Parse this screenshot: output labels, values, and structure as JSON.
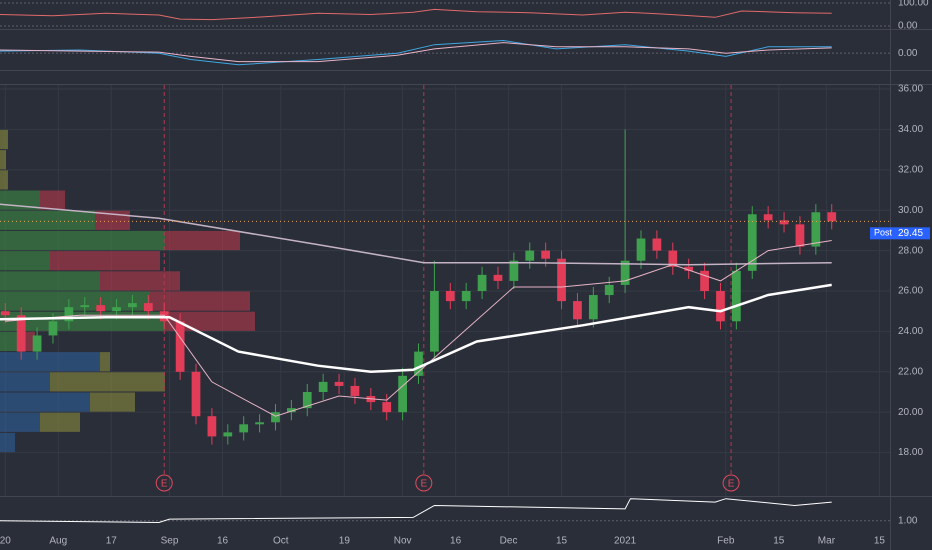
{
  "chart_data": [
    {
      "type": "candlestick",
      "xlim": [
        0,
        168
      ],
      "ylim": [
        15.85,
        36.2
      ],
      "xticks": [
        {
          "value": 1,
          "label": "20"
        },
        {
          "value": 11,
          "label": "Aug"
        },
        {
          "value": 21,
          "label": "17"
        },
        {
          "value": 32,
          "label": "Sep"
        },
        {
          "value": 42,
          "label": "16"
        },
        {
          "value": 53,
          "label": "Oct"
        },
        {
          "value": 65,
          "label": "19"
        },
        {
          "value": 76,
          "label": "Nov"
        },
        {
          "value": 86,
          "label": "16"
        },
        {
          "value": 96,
          "label": "Dec"
        },
        {
          "value": 106,
          "label": "15"
        },
        {
          "value": 118,
          "label": "2021"
        },
        {
          "value": 137,
          "label": "Feb"
        },
        {
          "value": 147,
          "label": "15"
        },
        {
          "value": 156,
          "label": "Mar"
        },
        {
          "value": 166,
          "label": "15"
        }
      ],
      "yticks": [
        {
          "value": 18,
          "label": "18.00"
        },
        {
          "value": 20,
          "label": "20.00"
        },
        {
          "value": 22,
          "label": "22.00"
        },
        {
          "value": 24,
          "label": "24.00"
        },
        {
          "value": 26,
          "label": "26.00"
        },
        {
          "value": 28,
          "label": "28.00"
        },
        {
          "value": 30,
          "label": "30.00"
        },
        {
          "value": 32,
          "label": "32.00"
        },
        {
          "value": 34,
          "label": "34.00"
        },
        {
          "value": 36,
          "label": "36.00"
        }
      ],
      "grid": true,
      "up_color": "#3fa14e",
      "down_color": "#e23d58",
      "x": [
        1,
        4,
        7,
        10,
        13,
        16,
        19,
        22,
        25,
        28,
        31,
        34,
        37,
        40,
        43,
        46,
        49,
        52,
        55,
        58,
        61,
        64,
        67,
        70,
        73,
        76,
        79,
        82,
        85,
        88,
        91,
        94,
        97,
        100,
        103,
        106,
        109,
        112,
        115,
        118,
        121,
        124,
        127,
        130,
        133,
        136,
        139,
        142,
        145,
        148,
        151,
        154,
        157
      ],
      "open": [
        25.0,
        24.8,
        23.0,
        23.8,
        24.5,
        25.2,
        25.3,
        25.0,
        25.2,
        25.4,
        25.0,
        24.5,
        22.0,
        19.8,
        18.8,
        19.0,
        19.4,
        19.5,
        20.0,
        20.2,
        21.0,
        21.5,
        21.3,
        20.8,
        20.5,
        20.0,
        21.8,
        23.0,
        26.0,
        25.5,
        26.0,
        26.8,
        26.5,
        27.5,
        28.0,
        27.6,
        25.5,
        24.6,
        25.8,
        26.3,
        27.5,
        28.6,
        28.0,
        27.2,
        27.0,
        26.0,
        24.5,
        27.0,
        29.8,
        29.5,
        29.3,
        28.2,
        29.9
      ],
      "high": [
        25.4,
        25.2,
        24.2,
        24.9,
        25.6,
        25.7,
        25.7,
        25.6,
        25.8,
        25.8,
        25.4,
        24.9,
        22.4,
        20.2,
        19.4,
        19.8,
        19.9,
        20.4,
        20.6,
        21.4,
        21.9,
        21.9,
        21.7,
        21.2,
        20.9,
        22.2,
        23.4,
        27.5,
        26.4,
        26.4,
        27.2,
        27.2,
        27.9,
        28.4,
        28.4,
        28.0,
        25.9,
        26.2,
        26.7,
        34.0,
        29.0,
        29.0,
        28.4,
        27.6,
        27.4,
        26.4,
        27.4,
        30.2,
        30.2,
        29.9,
        29.7,
        30.3,
        30.3
      ],
      "low": [
        24.4,
        22.6,
        22.6,
        23.4,
        24.1,
        24.8,
        24.6,
        24.6,
        24.8,
        24.6,
        24.1,
        21.6,
        19.4,
        18.4,
        18.4,
        18.6,
        19.0,
        19.1,
        19.6,
        19.8,
        20.6,
        20.9,
        20.4,
        20.1,
        19.6,
        19.6,
        21.4,
        22.6,
        25.1,
        25.1,
        25.6,
        26.1,
        26.1,
        27.1,
        27.2,
        25.1,
        24.2,
        24.2,
        25.4,
        25.9,
        27.1,
        27.6,
        26.8,
        26.6,
        25.6,
        24.1,
        24.1,
        26.6,
        29.1,
        28.9,
        27.8,
        27.8,
        29.05
      ],
      "close": [
        24.8,
        23.0,
        23.8,
        24.5,
        25.2,
        25.3,
        25.0,
        25.2,
        25.4,
        25.0,
        24.5,
        22.0,
        19.8,
        18.8,
        19.0,
        19.4,
        19.5,
        20.0,
        20.2,
        21.0,
        21.5,
        21.3,
        20.8,
        20.5,
        20.0,
        21.8,
        23.0,
        26.0,
        25.5,
        26.0,
        26.8,
        26.5,
        27.5,
        28.0,
        27.6,
        25.5,
        24.6,
        25.8,
        26.3,
        27.5,
        28.6,
        28.0,
        27.2,
        27.0,
        26.0,
        24.5,
        27.0,
        29.8,
        29.5,
        29.3,
        28.2,
        29.9,
        29.45
      ],
      "lines": [
        {
          "color": "#c4b3c4",
          "width": 1.5,
          "x": [
            0,
            30,
            60,
            80,
            100,
            130,
            157
          ],
          "values": [
            30.3,
            29.6,
            28.3,
            27.4,
            27.4,
            27.3,
            27.4
          ]
        },
        {
          "color": "#e7b3c6",
          "width": 1,
          "x": [
            1,
            15,
            31,
            40,
            52,
            64,
            73,
            82,
            97,
            106,
            118,
            127,
            136,
            145,
            157
          ],
          "values": [
            24.5,
            24.8,
            24.8,
            21.5,
            19.8,
            20.8,
            20.6,
            22.7,
            26.2,
            26.2,
            26.5,
            27.3,
            26.5,
            28.0,
            28.5
          ]
        },
        {
          "color": "#ffffff",
          "width": 2.5,
          "x": [
            0,
            20,
            32,
            45,
            60,
            70,
            78,
            90,
            110,
            130,
            136,
            145,
            157
          ],
          "values": [
            24.6,
            24.7,
            24.7,
            23.0,
            22.3,
            22.0,
            22.1,
            23.5,
            24.3,
            25.2,
            25.0,
            25.8,
            26.3
          ]
        }
      ],
      "profile": {
        "xlim": [
          0,
          400
        ],
        "groups": [
          {
            "up_color": "#8a8a3c",
            "down_color": "#8a8a3c",
            "prices": [
              33.5,
              32.5,
              31.5
            ],
            "up": [
              8,
              6,
              8
            ],
            "down": [
              0,
              0,
              0
            ]
          },
          {
            "up_color": "#3c8a45",
            "down_color": "#b8394b",
            "prices": [
              30.5,
              29.5,
              28.5,
              27.5,
              26.5,
              25.5,
              24.5,
              23.5
            ],
            "up": [
              40,
              95,
              165,
              50,
              100,
              150,
              165,
              20
            ],
            "down": [
              25,
              35,
              75,
              110,
              80,
              100,
              90,
              15
            ]
          },
          {
            "up_color": "#2f5f9a",
            "down_color": "#8a8a3c",
            "prices": [
              22.5,
              21.5,
              20.5,
              19.5,
              18.5
            ],
            "up": [
              100,
              50,
              90,
              40,
              15
            ],
            "down": [
              10,
              115,
              45,
              40,
              0
            ]
          }
        ]
      },
      "events": [
        {
          "x": 31,
          "label": "E"
        },
        {
          "x": 80,
          "label": "E"
        },
        {
          "x": 138,
          "label": "E"
        }
      ],
      "last": {
        "label": "Post",
        "value": 29.45
      }
    },
    {
      "type": "line",
      "xlim": [
        0,
        168
      ],
      "ylim": [
        0,
        100
      ],
      "yticks": [
        {
          "value": 100,
          "label": "100.00"
        },
        {
          "value": 0,
          "label": "0.00"
        }
      ],
      "series": [
        {
          "color": "#e26a6a",
          "x": [
            0,
            10,
            20,
            30,
            34,
            40,
            50,
            60,
            70,
            78,
            82,
            90,
            100,
            110,
            118,
            125,
            135,
            140,
            150,
            157
          ],
          "values": [
            50,
            45,
            55,
            48,
            30,
            28,
            40,
            55,
            50,
            60,
            72,
            62,
            58,
            48,
            60,
            52,
            38,
            65,
            58,
            55
          ]
        }
      ]
    },
    {
      "type": "line",
      "xlim": [
        0,
        168
      ],
      "ylim": [
        -1.4,
        2.0
      ],
      "yticks": [
        {
          "value": 0,
          "label": "0.00"
        }
      ],
      "series": [
        {
          "color": "#3fa6e0",
          "x": [
            0,
            15,
            30,
            36,
            45,
            60,
            75,
            82,
            95,
            105,
            118,
            130,
            137,
            145,
            157
          ],
          "values": [
            0.2,
            0.3,
            0.0,
            -0.6,
            -1.1,
            -0.6,
            0.0,
            0.8,
            1.2,
            0.4,
            0.8,
            0.2,
            -0.3,
            0.6,
            0.6
          ]
        },
        {
          "color": "#e8b4c8",
          "x": [
            0,
            15,
            30,
            36,
            45,
            60,
            75,
            82,
            95,
            105,
            118,
            130,
            137,
            145,
            157
          ],
          "values": [
            0.3,
            0.2,
            0.1,
            -0.3,
            -0.8,
            -0.8,
            -0.2,
            0.4,
            1.0,
            0.6,
            0.6,
            0.4,
            0.0,
            0.3,
            0.5
          ]
        }
      ]
    },
    {
      "type": "line",
      "xlim": [
        0,
        168
      ],
      "ylim": [
        0.2,
        1.7
      ],
      "yticks": [
        {
          "value": 1,
          "label": "1.00"
        }
      ],
      "series": [
        {
          "color": "#ffffff",
          "x": [
            0,
            30,
            32,
            78,
            82,
            118,
            119,
            135,
            137,
            150,
            157
          ],
          "values": [
            1.0,
            0.95,
            1.05,
            1.1,
            1.45,
            1.35,
            1.65,
            1.55,
            1.65,
            1.45,
            1.55
          ]
        }
      ]
    }
  ]
}
